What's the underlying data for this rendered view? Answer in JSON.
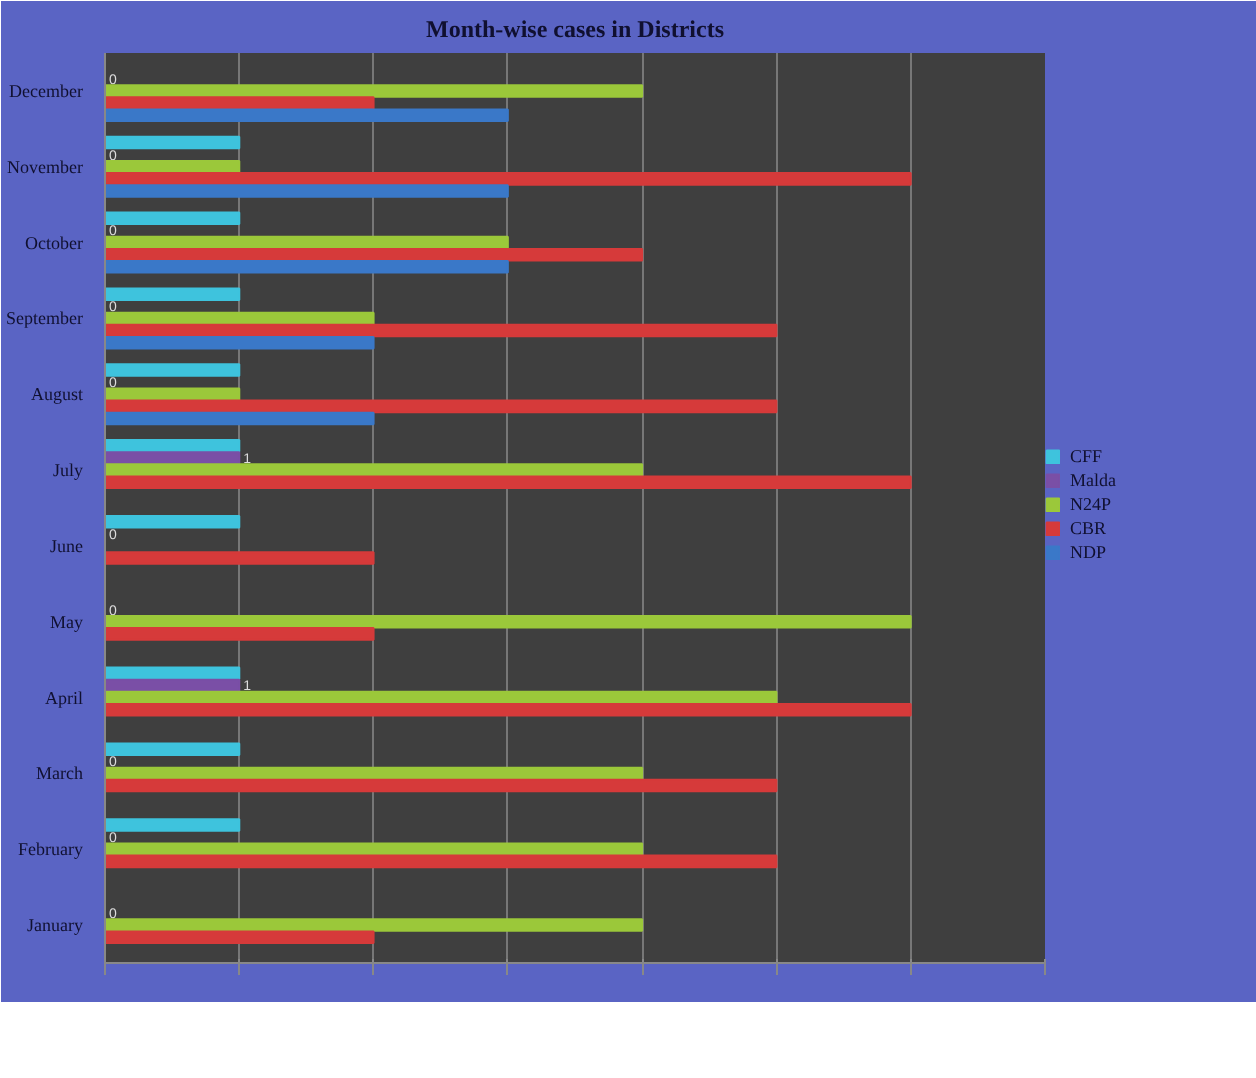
{
  "chart_data": {
    "type": "bar",
    "orientation": "horizontal",
    "title": "Month-wise cases in Districts",
    "categories": [
      "December",
      "November",
      "October",
      "September",
      "August",
      "July",
      "June",
      "May",
      "April",
      "March",
      "February",
      "January"
    ],
    "series": [
      {
        "name": "CFF",
        "color": "#3ec3dd",
        "values": [
          0,
          1,
          1,
          1,
          1,
          1,
          1,
          0,
          1,
          1,
          1,
          0
        ]
      },
      {
        "name": "Malda",
        "color": "#7a4fa6",
        "values": [
          0,
          0,
          0,
          0,
          0,
          1,
          0,
          0,
          1,
          0,
          0,
          0
        ],
        "value_labels": [
          "0",
          "0",
          "0",
          "0",
          "0",
          "1",
          "0",
          "0",
          "1",
          "0",
          "0",
          "0"
        ]
      },
      {
        "name": "N24P",
        "color": "#9bc83a",
        "values": [
          4,
          1,
          3,
          2,
          1,
          4,
          0,
          6,
          5,
          4,
          4,
          4
        ]
      },
      {
        "name": "CBR",
        "color": "#d63a3a",
        "values": [
          2,
          6,
          4,
          5,
          5,
          6,
          2,
          2,
          6,
          5,
          5,
          2
        ]
      },
      {
        "name": "NDP",
        "color": "#3a78c8",
        "values": [
          3,
          3,
          3,
          2,
          2,
          0,
          0,
          0,
          0,
          0,
          0,
          0
        ]
      }
    ],
    "xlim": [
      0,
      7
    ],
    "xticks": [
      {
        "value": 0,
        "label": null
      },
      {
        "value": 1,
        "label": null
      },
      {
        "value": 2,
        "label": null
      },
      {
        "value": 3,
        "label": null
      },
      {
        "value": 4,
        "label": null
      },
      {
        "value": 5,
        "label": null
      },
      {
        "value": 6,
        "label": null
      },
      {
        "value": 7,
        "label": null
      }
    ],
    "tick_labels": "y",
    "grid": "x",
    "legend": "right"
  }
}
